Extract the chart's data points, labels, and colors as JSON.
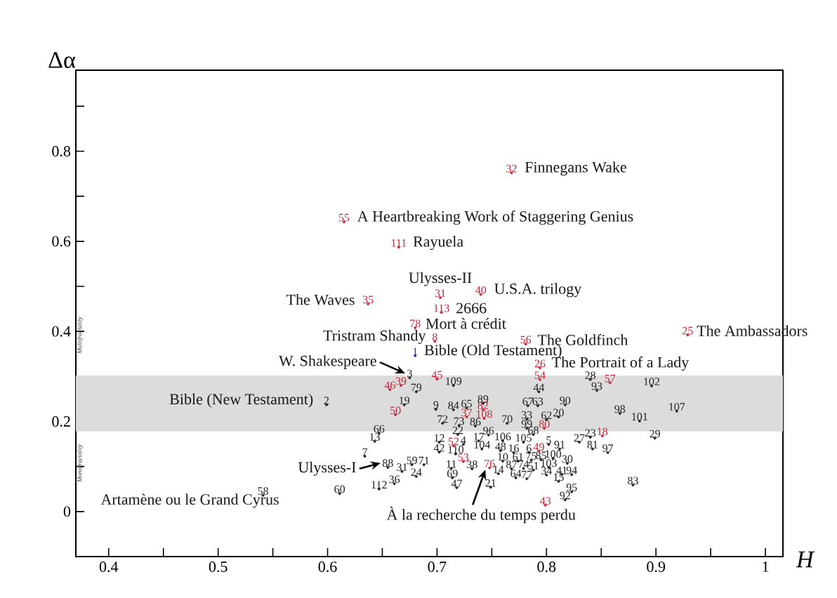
{
  "chart_data": {
    "type": "scatter",
    "xlabel": "H",
    "ylabel": "Δα",
    "xlim": [
      0.37,
      1.016
    ],
    "ylim": [
      -0.1,
      0.98
    ],
    "xticks": [
      0.4,
      {
        "value": 0.45,
        "label": null
      },
      0.5,
      {
        "value": 0.55,
        "label": null
      },
      0.6,
      {
        "value": 0.65,
        "label": null
      },
      0.7,
      {
        "value": 0.75,
        "label": null
      },
      0.8,
      {
        "value": 0.85,
        "label": null
      },
      0.9,
      {
        "value": 0.95,
        "label": null
      },
      1
    ],
    "yticks": [
      0,
      {
        "value": 0.1,
        "label": null
      },
      0.2,
      {
        "value": 0.3,
        "label": null
      },
      0.4,
      {
        "value": 0.5,
        "label": null
      },
      0.6,
      {
        "value": 0.7,
        "label": null
      },
      0.8,
      {
        "value": 0.9,
        "label": null
      }
    ],
    "bands": [
      {
        "axis": "y",
        "from": 0.178,
        "to": 0.302,
        "color": "#dcdcdc"
      }
    ],
    "series": [
      {
        "color": "#c8263a",
        "x": [
          0.768,
          0.615,
          0.665,
          0.703,
          0.74,
          0.637,
          0.704,
          0.68,
          0.698,
          0.781,
          0.929,
          0.794,
          0.794,
          0.7,
          0.858,
          0.657,
          0.667,
          0.662,
          0.727,
          0.742,
          0.743,
          0.798,
          0.851,
          0.715,
          0.793,
          0.724,
          0.748,
          0.799
        ],
        "values": [
          0.752,
          0.643,
          0.587,
          0.475,
          0.482,
          0.461,
          0.442,
          0.408,
          0.378,
          0.372,
          0.392,
          0.319,
          0.293,
          0.294,
          0.286,
          0.271,
          0.28,
          0.215,
          0.21,
          0.226,
          0.207,
          0.185,
          0.168,
          0.146,
          0.134,
          0.111,
          0.097,
          0.014
        ]
      },
      {
        "color": "#3030a0",
        "x": [
          0.68
        ],
        "values": [
          0.346
        ]
      },
      {
        "color": "#222222",
        "x": [
          0.675,
          0.681,
          0.715,
          0.793,
          0.84,
          0.846,
          0.896,
          0.599,
          0.67,
          0.699,
          0.715,
          0.727,
          0.742,
          0.783,
          0.792,
          0.817,
          0.867,
          0.919,
          0.705,
          0.72,
          0.735,
          0.764,
          0.782,
          0.8,
          0.811,
          0.885,
          0.782,
          0.788,
          0.719,
          0.647,
          0.643,
          0.899,
          0.84,
          0.83,
          0.747,
          0.76,
          0.779,
          0.738,
          0.702,
          0.724,
          0.802,
          0.812,
          0.842,
          0.856,
          0.702,
          0.717,
          0.741,
          0.758,
          0.77,
          0.784,
          0.634,
          0.806,
          0.795,
          0.819,
          0.774,
          0.786,
          0.76,
          0.768,
          0.779,
          0.788,
          0.802,
          0.756,
          0.772,
          0.782,
          0.8,
          0.814,
          0.823,
          0.811,
          0.655,
          0.668,
          0.677,
          0.688,
          0.681,
          0.713,
          0.732,
          0.714,
          0.661,
          0.647,
          0.718,
          0.749,
          0.823,
          0.817,
          0.879,
          0.541,
          0.611
        ],
        "values": [
          0.297,
          0.266,
          0.28,
          0.266,
          0.293,
          0.269,
          0.279,
          0.237,
          0.237,
          0.227,
          0.226,
          0.23,
          0.24,
          0.235,
          0.235,
          0.237,
          0.218,
          0.223,
          0.196,
          0.191,
          0.19,
          0.196,
          0.205,
          0.204,
          0.21,
          0.201,
          0.185,
          0.171,
          0.171,
          0.174,
          0.156,
          0.163,
          0.165,
          0.154,
          0.17,
          0.157,
          0.154,
          0.157,
          0.154,
          0.149,
          0.149,
          0.139,
          0.139,
          0.131,
          0.132,
          0.128,
          0.139,
          0.135,
          0.131,
          0.131,
          0.123,
          0.118,
          0.115,
          0.107,
          0.112,
          0.114,
          0.112,
          0.095,
          0.096,
          0.092,
          0.098,
          0.084,
          0.075,
          0.073,
          0.081,
          0.082,
          0.082,
          0.067,
          0.098,
          0.089,
          0.104,
          0.104,
          0.078,
          0.096,
          0.095,
          0.075,
          0.062,
          0.05,
          0.053,
          0.054,
          0.044,
          0.026,
          0.059,
          0.036,
          0.04
        ]
      }
    ],
    "annotations": [
      "Multifractality",
      "Monofractality",
      {
        "text": "32",
        "x": 0.768,
        "y": 0.752
      },
      {
        "text": "55",
        "x": 0.615,
        "y": 0.643
      },
      {
        "text": "111",
        "x": 0.665,
        "y": 0.587
      },
      {
        "text": "31",
        "x": 0.703,
        "y": 0.475
      },
      {
        "text": "40",
        "x": 0.74,
        "y": 0.482
      },
      {
        "text": "35",
        "x": 0.637,
        "y": 0.461
      },
      {
        "text": "113",
        "x": 0.704,
        "y": 0.442
      },
      {
        "text": "78",
        "x": 0.68,
        "y": 0.408
      },
      {
        "text": "8",
        "x": 0.698,
        "y": 0.378
      },
      {
        "text": "56",
        "x": 0.781,
        "y": 0.372
      },
      {
        "text": "25",
        "x": 0.929,
        "y": 0.392
      },
      {
        "text": "26",
        "x": 0.794,
        "y": 0.319
      },
      {
        "text": "54",
        "x": 0.794,
        "y": 0.293
      },
      {
        "text": "45",
        "x": 0.7,
        "y": 0.294
      },
      {
        "text": "57",
        "x": 0.858,
        "y": 0.286
      },
      {
        "text": "46",
        "x": 0.657,
        "y": 0.271
      },
      {
        "text": "39",
        "x": 0.667,
        "y": 0.28
      },
      {
        "text": "50",
        "x": 0.662,
        "y": 0.215
      },
      {
        "text": "37",
        "x": 0.727,
        "y": 0.21
      },
      {
        "text": "82",
        "x": 0.742,
        "y": 0.226
      },
      {
        "text": "108",
        "x": 0.743,
        "y": 0.207
      },
      {
        "text": "80",
        "x": 0.798,
        "y": 0.185
      },
      {
        "text": "18",
        "x": 0.851,
        "y": 0.168
      },
      {
        "text": "52",
        "x": 0.715,
        "y": 0.146
      },
      {
        "text": "49",
        "x": 0.793,
        "y": 0.134
      },
      {
        "text": "53",
        "x": 0.724,
        "y": 0.111
      },
      {
        "text": "76",
        "x": 0.748,
        "y": 0.097
      },
      {
        "text": "43",
        "x": 0.799,
        "y": 0.014
      },
      {
        "text": "1",
        "x": 0.68,
        "y": 0.346
      },
      {
        "text": "3",
        "x": 0.675,
        "y": 0.297
      },
      {
        "text": "79",
        "x": 0.681,
        "y": 0.266
      },
      {
        "text": "109",
        "x": 0.715,
        "y": 0.28
      },
      {
        "text": "44",
        "x": 0.793,
        "y": 0.266
      },
      {
        "text": "28",
        "x": 0.84,
        "y": 0.293
      },
      {
        "text": "93",
        "x": 0.846,
        "y": 0.269
      },
      {
        "text": "102",
        "x": 0.896,
        "y": 0.279
      },
      {
        "text": "2",
        "x": 0.599,
        "y": 0.237
      },
      {
        "text": "19",
        "x": 0.67,
        "y": 0.237
      },
      {
        "text": "9",
        "x": 0.699,
        "y": 0.227
      },
      {
        "text": "84",
        "x": 0.715,
        "y": 0.226
      },
      {
        "text": "65",
        "x": 0.727,
        "y": 0.23
      },
      {
        "text": "89",
        "x": 0.742,
        "y": 0.24
      },
      {
        "text": "67",
        "x": 0.783,
        "y": 0.235
      },
      {
        "text": "63",
        "x": 0.792,
        "y": 0.235
      },
      {
        "text": "90",
        "x": 0.817,
        "y": 0.237
      },
      {
        "text": "98",
        "x": 0.867,
        "y": 0.218
      },
      {
        "text": "107",
        "x": 0.919,
        "y": 0.223
      },
      {
        "text": "72",
        "x": 0.705,
        "y": 0.196
      },
      {
        "text": "73",
        "x": 0.72,
        "y": 0.191
      },
      {
        "text": "86",
        "x": 0.735,
        "y": 0.19
      },
      {
        "text": "70",
        "x": 0.764,
        "y": 0.196
      },
      {
        "text": "33",
        "x": 0.782,
        "y": 0.205
      },
      {
        "text": "62",
        "x": 0.8,
        "y": 0.204
      },
      {
        "text": "20",
        "x": 0.811,
        "y": 0.21
      },
      {
        "text": "101",
        "x": 0.885,
        "y": 0.201
      },
      {
        "text": "99",
        "x": 0.782,
        "y": 0.185
      },
      {
        "text": "68",
        "x": 0.788,
        "y": 0.171
      },
      {
        "text": "22",
        "x": 0.719,
        "y": 0.171
      },
      {
        "text": "66",
        "x": 0.647,
        "y": 0.174
      },
      {
        "text": "13",
        "x": 0.643,
        "y": 0.156
      },
      {
        "text": "29",
        "x": 0.899,
        "y": 0.163
      },
      {
        "text": "23",
        "x": 0.84,
        "y": 0.165
      },
      {
        "text": "27",
        "x": 0.83,
        "y": 0.154
      },
      {
        "text": "96",
        "x": 0.747,
        "y": 0.17
      },
      {
        "text": "106",
        "x": 0.76,
        "y": 0.157
      },
      {
        "text": "105",
        "x": 0.779,
        "y": 0.154
      },
      {
        "text": "17",
        "x": 0.738,
        "y": 0.157
      },
      {
        "text": "12",
        "x": 0.702,
        "y": 0.154
      },
      {
        "text": "4",
        "x": 0.724,
        "y": 0.149
      },
      {
        "text": "5",
        "x": 0.802,
        "y": 0.149
      },
      {
        "text": "91",
        "x": 0.812,
        "y": 0.139
      },
      {
        "text": "81",
        "x": 0.842,
        "y": 0.139
      },
      {
        "text": "97",
        "x": 0.856,
        "y": 0.131
      },
      {
        "text": "42",
        "x": 0.702,
        "y": 0.132
      },
      {
        "text": "110",
        "x": 0.717,
        "y": 0.128
      },
      {
        "text": "104",
        "x": 0.741,
        "y": 0.139
      },
      {
        "text": "48",
        "x": 0.758,
        "y": 0.135
      },
      {
        "text": "16",
        "x": 0.77,
        "y": 0.131
      },
      {
        "text": "6",
        "x": 0.784,
        "y": 0.131
      },
      {
        "text": "7",
        "x": 0.634,
        "y": 0.123
      },
      {
        "text": "100",
        "x": 0.806,
        "y": 0.118
      },
      {
        "text": "85",
        "x": 0.795,
        "y": 0.115
      },
      {
        "text": "30",
        "x": 0.819,
        "y": 0.107
      },
      {
        "text": "61",
        "x": 0.774,
        "y": 0.112
      },
      {
        "text": "75",
        "x": 0.786,
        "y": 0.114
      },
      {
        "text": "10",
        "x": 0.76,
        "y": 0.112
      },
      {
        "text": "87",
        "x": 0.768,
        "y": 0.095
      },
      {
        "text": "74",
        "x": 0.779,
        "y": 0.096
      },
      {
        "text": "51",
        "x": 0.788,
        "y": 0.092
      },
      {
        "text": "103",
        "x": 0.802,
        "y": 0.098
      },
      {
        "text": "14",
        "x": 0.756,
        "y": 0.084
      },
      {
        "text": "64",
        "x": 0.772,
        "y": 0.075
      },
      {
        "text": "77",
        "x": 0.782,
        "y": 0.073
      },
      {
        "text": "34",
        "x": 0.8,
        "y": 0.081
      },
      {
        "text": "41",
        "x": 0.814,
        "y": 0.082
      },
      {
        "text": "94",
        "x": 0.823,
        "y": 0.082
      },
      {
        "text": "15",
        "x": 0.811,
        "y": 0.067
      },
      {
        "text": "88",
        "x": 0.655,
        "y": 0.098
      },
      {
        "text": "31",
        "x": 0.668,
        "y": 0.089
      },
      {
        "text": "59",
        "x": 0.677,
        "y": 0.104
      },
      {
        "text": "71",
        "x": 0.688,
        "y": 0.104
      },
      {
        "text": "24",
        "x": 0.681,
        "y": 0.078
      },
      {
        "text": "11",
        "x": 0.713,
        "y": 0.096
      },
      {
        "text": "38",
        "x": 0.732,
        "y": 0.095
      },
      {
        "text": "69",
        "x": 0.714,
        "y": 0.075
      },
      {
        "text": "36",
        "x": 0.661,
        "y": 0.062
      },
      {
        "text": "112",
        "x": 0.647,
        "y": 0.05
      },
      {
        "text": "47",
        "x": 0.718,
        "y": 0.053
      },
      {
        "text": "21",
        "x": 0.749,
        "y": 0.054
      },
      {
        "text": "95",
        "x": 0.823,
        "y": 0.044
      },
      {
        "text": "92",
        "x": 0.817,
        "y": 0.026
      },
      {
        "text": "83",
        "x": 0.879,
        "y": 0.059
      },
      {
        "text": "58",
        "x": 0.541,
        "y": 0.036
      },
      {
        "text": "60",
        "x": 0.611,
        "y": 0.04
      },
      {
        "text": "Finnegans Wake",
        "x": 0.768,
        "y": 0.752
      },
      {
        "text": "A  Heartbreaking Work of Staggering Genius",
        "x": 0.615,
        "y": 0.643
      },
      {
        "text": "Rayuela",
        "x": 0.665,
        "y": 0.587
      },
      {
        "text": "Ulysses-II",
        "x": 0.703,
        "y": 0.475
      },
      {
        "text": "U.S.A. trilogy",
        "x": 0.74,
        "y": 0.482
      },
      {
        "text": "The Waves",
        "x": 0.637,
        "y": 0.461
      },
      {
        "text": "2666",
        "x": 0.704,
        "y": 0.442
      },
      {
        "text": "Mort à crédit",
        "x": 0.68,
        "y": 0.408
      },
      {
        "text": "Tristram Shandy",
        "x": 0.698,
        "y": 0.378
      },
      {
        "text": "Bible (Old Testament)",
        "x": 0.68,
        "y": 0.346
      },
      {
        "text": "The Goldfinch",
        "x": 0.781,
        "y": 0.372
      },
      {
        "text": "The Ambassadors",
        "x": 0.929,
        "y": 0.392
      },
      {
        "text": "The Portrait of a Lady",
        "x": 0.794,
        "y": 0.319
      },
      {
        "text": "W. Shakespeare",
        "x": 0.675,
        "y": 0.297
      },
      {
        "text": "Bible (New Testament)",
        "x": 0.599,
        "y": 0.237
      },
      {
        "text": "Ulysses-I",
        "x": 0.655,
        "y": 0.098
      },
      {
        "text": "Artamène ou le Grand Cyrus",
        "x": 0.541,
        "y": 0.036
      },
      {
        "text": "À la recherche du temps perdu",
        "x": 0.748,
        "y": 0.097
      }
    ]
  }
}
